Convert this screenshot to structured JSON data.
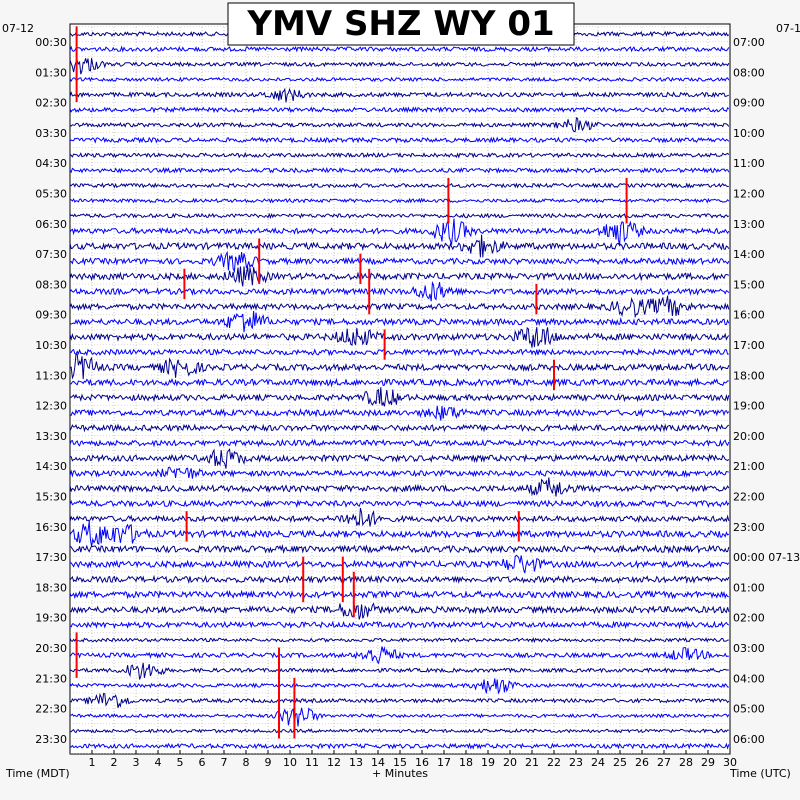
{
  "chart_data": {
    "type": "line",
    "title": "YMV SHZ WY 01",
    "left_axis_label": "Time (MDT)",
    "right_axis_label": "Time (UTC)",
    "x_axis_label": "+ Minutes",
    "left_date_label": "07-12",
    "right_date_label": "07-1",
    "x_range": [
      0,
      30
    ],
    "x_ticks": [
      1,
      2,
      3,
      4,
      5,
      6,
      7,
      8,
      9,
      10,
      11,
      12,
      13,
      14,
      15,
      16,
      17,
      18,
      19,
      20,
      21,
      22,
      23,
      24,
      25,
      26,
      27,
      28,
      29,
      30
    ],
    "row_count": 48,
    "row_minutes": 30,
    "left_time_labels": [
      "00:30",
      "01:30",
      "02:30",
      "03:30",
      "04:30",
      "05:30",
      "06:30",
      "07:30",
      "08:30",
      "09:30",
      "10:30",
      "11:30",
      "12:30",
      "13:30",
      "14:30",
      "15:30",
      "16:30",
      "17:30",
      "18:30",
      "19:30",
      "20:30",
      "21:30",
      "22:30",
      "23:30"
    ],
    "right_time_labels": [
      "07:00",
      "08:00",
      "09:00",
      "10:00",
      "11:00",
      "12:00",
      "13:00",
      "14:00",
      "15:00",
      "16:00",
      "17:00",
      "18:00",
      "19:00",
      "20:00",
      "21:00",
      "22:00",
      "23:00",
      "00:00 07-13",
      "01:00",
      "02:00",
      "03:00",
      "04:00",
      "05:00",
      "06:00"
    ],
    "trace_colors": [
      "#00008b",
      "#0000ff"
    ],
    "spike_color": "#ff0000",
    "grid": true,
    "clipped_spikes": [
      {
        "row": 0,
        "minute": 0.3,
        "span_rows": 5
      },
      {
        "row": 10,
        "minute": 17.2,
        "span_rows": 3
      },
      {
        "row": 10,
        "minute": 25.3,
        "span_rows": 3
      },
      {
        "row": 14,
        "minute": 8.6,
        "span_rows": 3
      },
      {
        "row": 15,
        "minute": 13.2,
        "span_rows": 2
      },
      {
        "row": 16,
        "minute": 5.2,
        "span_rows": 2
      },
      {
        "row": 16,
        "minute": 13.6,
        "span_rows": 3
      },
      {
        "row": 17,
        "minute": 21.2,
        "span_rows": 2
      },
      {
        "row": 20,
        "minute": 14.3,
        "span_rows": 2
      },
      {
        "row": 22,
        "minute": 22.0,
        "span_rows": 2
      },
      {
        "row": 32,
        "minute": 5.3,
        "span_rows": 2
      },
      {
        "row": 32,
        "minute": 20.4,
        "span_rows": 2
      },
      {
        "row": 35,
        "minute": 10.6,
        "span_rows": 3
      },
      {
        "row": 35,
        "minute": 12.4,
        "span_rows": 3
      },
      {
        "row": 36,
        "minute": 12.9,
        "span_rows": 3
      },
      {
        "row": 40,
        "minute": 0.3,
        "span_rows": 3
      },
      {
        "row": 41,
        "minute": 9.5,
        "span_rows": 6
      },
      {
        "row": 43,
        "minute": 10.2,
        "span_rows": 4
      }
    ],
    "events": [
      {
        "row": 2,
        "minute": 0.5,
        "amp": 3
      },
      {
        "row": 4,
        "minute": 9.8,
        "amp": 2
      },
      {
        "row": 6,
        "minute": 23.0,
        "amp": 2
      },
      {
        "row": 13,
        "minute": 17.3,
        "amp": 4
      },
      {
        "row": 13,
        "minute": 25.0,
        "amp": 4
      },
      {
        "row": 14,
        "minute": 18.7,
        "amp": 3
      },
      {
        "row": 15,
        "minute": 7.5,
        "amp": 3
      },
      {
        "row": 16,
        "minute": 8.0,
        "amp": 3
      },
      {
        "row": 17,
        "minute": 16.5,
        "amp": 3
      },
      {
        "row": 18,
        "minute": 25.5,
        "amp": 3
      },
      {
        "row": 18,
        "minute": 27.2,
        "amp": 3
      },
      {
        "row": 19,
        "minute": 8.0,
        "amp": 4
      },
      {
        "row": 20,
        "minute": 13.0,
        "amp": 3
      },
      {
        "row": 20,
        "minute": 21.2,
        "amp": 4
      },
      {
        "row": 22,
        "minute": 5.0,
        "amp": 3
      },
      {
        "row": 22,
        "minute": 0.4,
        "amp": 4
      },
      {
        "row": 24,
        "minute": 14.2,
        "amp": 3
      },
      {
        "row": 25,
        "minute": 17.0,
        "amp": 2
      },
      {
        "row": 28,
        "minute": 7.0,
        "amp": 3
      },
      {
        "row": 29,
        "minute": 5.0,
        "amp": 2
      },
      {
        "row": 30,
        "minute": 21.8,
        "amp": 3
      },
      {
        "row": 32,
        "minute": 13.2,
        "amp": 3
      },
      {
        "row": 33,
        "minute": 1.0,
        "amp": 4
      },
      {
        "row": 33,
        "minute": 2.5,
        "amp": 3
      },
      {
        "row": 35,
        "minute": 20.5,
        "amp": 3
      },
      {
        "row": 38,
        "minute": 13.0,
        "amp": 3
      },
      {
        "row": 41,
        "minute": 14.0,
        "amp": 3
      },
      {
        "row": 41,
        "minute": 28.0,
        "amp": 2
      },
      {
        "row": 42,
        "minute": 3.3,
        "amp": 3
      },
      {
        "row": 43,
        "minute": 19.3,
        "amp": 3
      },
      {
        "row": 44,
        "minute": 1.8,
        "amp": 3
      },
      {
        "row": 45,
        "minute": 10.3,
        "amp": 4
      }
    ]
  }
}
